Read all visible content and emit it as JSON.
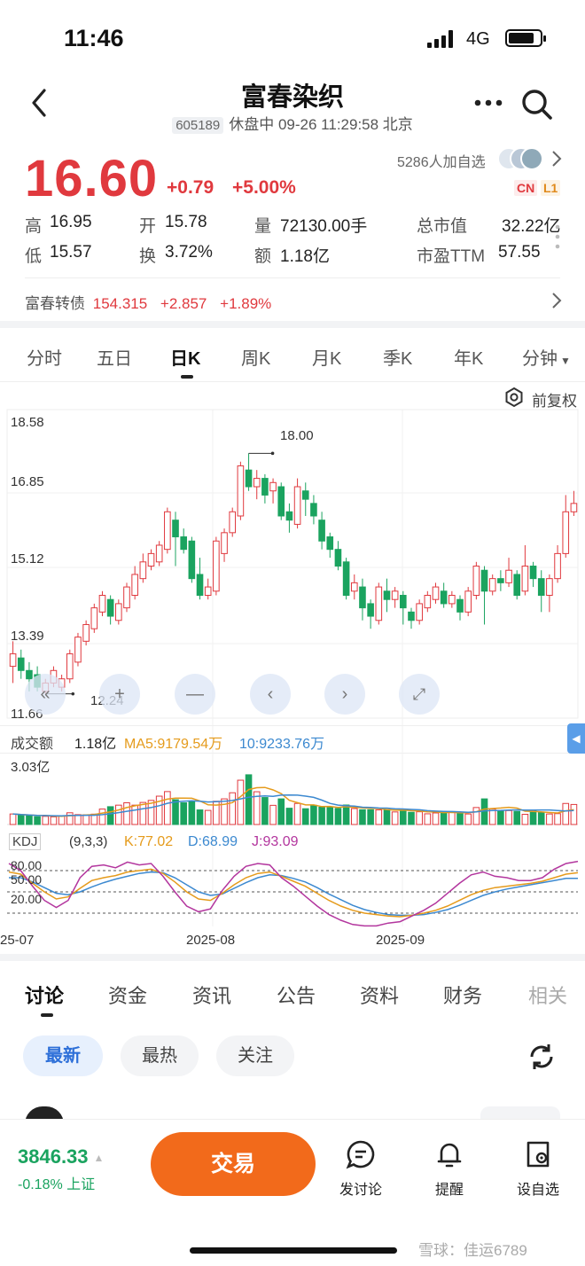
{
  "status_bar": {
    "time": "11:46",
    "network": "4G"
  },
  "header": {
    "title": "富春染织",
    "code": "605189",
    "status": "休盘中 09-26 11:29:58 北京"
  },
  "quote": {
    "price": "16.60",
    "change": "+0.79",
    "change_pct": "+5.00%",
    "followers": "5286人加自选",
    "tags": [
      "CN",
      "L1"
    ],
    "stats": [
      {
        "label": "高",
        "value": "16.95",
        "color": "red"
      },
      {
        "label": "开",
        "value": "15.78",
        "color": "red"
      },
      {
        "label": "量",
        "value": "72130.00手",
        "color": "dark"
      },
      {
        "label": "总市值",
        "value": "32.22亿",
        "color": "dark"
      },
      {
        "label": "低",
        "value": "15.57",
        "color": "green"
      },
      {
        "label": "换",
        "value": "3.72%",
        "color": "dark"
      },
      {
        "label": "额",
        "value": "1.18亿",
        "color": "dark"
      },
      {
        "label": "市盈TTM",
        "value": "57.55",
        "color": "dark"
      }
    ],
    "convertible": {
      "name": "富春转债",
      "price": "154.315",
      "change": "+2.857",
      "pct": "+1.89%"
    }
  },
  "kline_tabs": [
    "分时",
    "五日",
    "日K",
    "周K",
    "月K",
    "季K",
    "年K",
    "分钟"
  ],
  "adjust_label": "前复权",
  "price_axis": [
    "18.58",
    "16.85",
    "15.12",
    "13.39",
    "11.66"
  ],
  "annotations": {
    "high": "18.00",
    "low": "12.24"
  },
  "volume_panel": {
    "label": "成交额",
    "value": "1.18亿",
    "ma5": "MA5:9179.54万",
    "ma10": "10:9233.76万",
    "max": "3.03亿"
  },
  "kdj_panel": {
    "label": "KDJ",
    "params": "(9,3,3)",
    "k": "K:77.02",
    "d": "D:68.99",
    "j": "J:93.09",
    "levels": [
      "80.00",
      "50.00",
      "20.00"
    ]
  },
  "date_axis": [
    "25-07",
    "2025-08",
    "2025-09"
  ],
  "chart_data": {
    "type": "candlestick",
    "ylim": [
      11.66,
      18.58
    ],
    "annotations": {
      "max": 18.0,
      "min": 12.24
    },
    "candles": [
      [
        12.9,
        13.2,
        13.5,
        12.5
      ],
      [
        13.1,
        12.8,
        13.3,
        12.6
      ],
      [
        12.8,
        12.6,
        13.0,
        12.3
      ],
      [
        12.7,
        12.4,
        12.9,
        12.3
      ],
      [
        12.3,
        12.5,
        12.6,
        12.24
      ],
      [
        12.5,
        12.8,
        12.9,
        12.4
      ],
      [
        12.4,
        12.6,
        12.7,
        12.3
      ],
      [
        12.6,
        13.2,
        13.3,
        12.5
      ],
      [
        13.0,
        13.6,
        13.7,
        12.9
      ],
      [
        13.5,
        13.9,
        14.0,
        13.4
      ],
      [
        13.8,
        14.3,
        14.4,
        13.7
      ],
      [
        14.2,
        14.6,
        14.7,
        14.1
      ],
      [
        14.5,
        14.1,
        14.6,
        13.9
      ],
      [
        14.0,
        14.4,
        14.5,
        13.9
      ],
      [
        14.3,
        14.8,
        14.9,
        14.2
      ],
      [
        14.6,
        15.1,
        15.3,
        14.5
      ],
      [
        15.0,
        15.4,
        15.6,
        14.9
      ],
      [
        15.3,
        15.6,
        15.7,
        15.2
      ],
      [
        15.4,
        15.8,
        15.9,
        15.3
      ],
      [
        15.7,
        16.6,
        16.7,
        15.6
      ],
      [
        16.4,
        16.0,
        16.6,
        15.3
      ],
      [
        16.0,
        15.7,
        16.2,
        15.6
      ],
      [
        15.9,
        15.0,
        16.0,
        14.9
      ],
      [
        15.1,
        14.6,
        15.5,
        14.5
      ],
      [
        14.6,
        14.8,
        15.0,
        14.5
      ],
      [
        14.7,
        15.9,
        16.0,
        14.6
      ],
      [
        15.6,
        16.1,
        16.2,
        15.4
      ],
      [
        16.1,
        16.6,
        16.7,
        16.0
      ],
      [
        16.5,
        17.7,
        17.8,
        16.4
      ],
      [
        17.6,
        17.2,
        18.0,
        17.1
      ],
      [
        17.2,
        17.4,
        17.6,
        16.9
      ],
      [
        17.4,
        17.0,
        17.5,
        16.8
      ],
      [
        17.1,
        17.3,
        17.4,
        16.8
      ],
      [
        17.2,
        16.5,
        17.3,
        16.4
      ],
      [
        16.6,
        16.4,
        16.8,
        16.1
      ],
      [
        16.3,
        17.2,
        17.4,
        16.2
      ],
      [
        17.1,
        16.9,
        17.3,
        16.5
      ],
      [
        16.8,
        16.5,
        17.0,
        16.3
      ],
      [
        16.4,
        15.9,
        16.6,
        15.7
      ],
      [
        16.0,
        15.7,
        16.1,
        15.5
      ],
      [
        15.7,
        15.3,
        15.9,
        15.2
      ],
      [
        15.4,
        14.6,
        15.5,
        14.5
      ],
      [
        14.7,
        14.9,
        15.1,
        14.5
      ],
      [
        14.8,
        14.3,
        15.0,
        14.0
      ],
      [
        14.4,
        14.1,
        14.5,
        13.8
      ],
      [
        14.0,
        14.8,
        14.9,
        13.9
      ],
      [
        14.7,
        14.5,
        15.0,
        14.2
      ],
      [
        14.5,
        14.7,
        14.8,
        14.3
      ],
      [
        14.6,
        14.3,
        14.7,
        13.9
      ],
      [
        14.2,
        14.0,
        14.3,
        13.8
      ],
      [
        14.0,
        14.4,
        14.5,
        13.9
      ],
      [
        14.3,
        14.6,
        14.7,
        14.2
      ],
      [
        14.5,
        14.8,
        14.9,
        14.4
      ],
      [
        14.7,
        14.4,
        14.9,
        14.3
      ],
      [
        14.4,
        14.6,
        14.7,
        14.3
      ],
      [
        14.5,
        14.2,
        14.6,
        14.0
      ],
      [
        14.2,
        14.7,
        14.8,
        14.1
      ],
      [
        14.6,
        15.3,
        15.4,
        14.5
      ],
      [
        15.2,
        14.7,
        15.3,
        13.9
      ],
      [
        14.7,
        15.0,
        15.1,
        14.6
      ],
      [
        15.0,
        14.9,
        15.2,
        14.7
      ],
      [
        14.9,
        15.2,
        15.5,
        14.8
      ],
      [
        15.1,
        14.6,
        15.2,
        14.5
      ],
      [
        14.7,
        15.3,
        15.8,
        14.6
      ],
      [
        15.3,
        15.0,
        15.4,
        14.8
      ],
      [
        15.0,
        14.6,
        15.2,
        14.2
      ],
      [
        14.6,
        15.0,
        15.1,
        14.2
      ],
      [
        15.0,
        15.6,
        15.8,
        14.9
      ],
      [
        15.6,
        16.6,
        17.0,
        15.5
      ],
      [
        16.6,
        16.8,
        17.1,
        16.5
      ]
    ],
    "volume": [
      0.62,
      0.55,
      0.53,
      0.46,
      0.48,
      0.45,
      0.5,
      0.69,
      0.58,
      0.57,
      0.61,
      0.91,
      1.05,
      1.14,
      1.28,
      1.14,
      1.3,
      1.42,
      1.67,
      1.94,
      1.46,
      1.28,
      1.37,
      0.86,
      0.83,
      1.37,
      1.51,
      1.87,
      2.61,
      2.93,
      1.93,
      1.59,
      1.13,
      1.51,
      0.96,
      1.24,
      0.93,
      1.13,
      1.02,
      1.0,
      0.95,
      1.15,
      0.94,
      0.87,
      0.87,
      0.86,
      0.87,
      0.74,
      0.89,
      0.72,
      0.75,
      0.63,
      0.68,
      0.73,
      0.76,
      0.66,
      0.62,
      1.0,
      1.51,
      0.91,
      0.83,
      0.82,
      0.77,
      0.6,
      0.82,
      0.71,
      0.62,
      0.64,
      1.24,
      1.18
    ],
    "kdj": {
      "k": [
        78,
        75,
        62,
        50,
        40,
        43,
        55,
        66,
        70,
        73,
        78,
        80,
        82,
        76,
        64,
        50,
        40,
        38,
        48,
        60,
        70,
        76,
        78,
        72,
        65,
        58,
        48,
        38,
        30,
        24,
        20,
        18,
        16,
        15,
        17,
        20,
        24,
        30,
        38,
        46,
        52,
        56,
        58,
        60,
        62,
        65,
        70,
        75,
        77
      ],
      "d": [
        70,
        70,
        64,
        56,
        48,
        46,
        50,
        57,
        63,
        68,
        72,
        76,
        78,
        77,
        70,
        60,
        50,
        45,
        47,
        55,
        63,
        70,
        74,
        73,
        69,
        64,
        56,
        47,
        39,
        31,
        25,
        21,
        18,
        17,
        17,
        18,
        21,
        25,
        31,
        38,
        45,
        50,
        54,
        57,
        60,
        63,
        66,
        69,
        69
      ],
      "j": [
        90,
        80,
        58,
        38,
        28,
        38,
        70,
        86,
        88,
        84,
        92,
        88,
        90,
        72,
        50,
        30,
        22,
        26,
        52,
        72,
        86,
        90,
        88,
        70,
        58,
        44,
        30,
        18,
        10,
        4,
        2,
        2,
        6,
        8,
        16,
        24,
        34,
        48,
        62,
        74,
        78,
        72,
        70,
        66,
        66,
        70,
        82,
        90,
        93
      ]
    }
  },
  "news_tabs": [
    "讨论",
    "资金",
    "资讯",
    "公告",
    "资料",
    "财务",
    "相关"
  ],
  "filter_pills": [
    "最新",
    "最热",
    "关注"
  ],
  "bottom_bar": {
    "index_value": "3846.33",
    "index_change": "-0.18%",
    "index_name": "上证",
    "trade": "交易",
    "items": [
      "发讨论",
      "提醒",
      "设自选"
    ]
  },
  "watermark": "雪球：佳运6789"
}
